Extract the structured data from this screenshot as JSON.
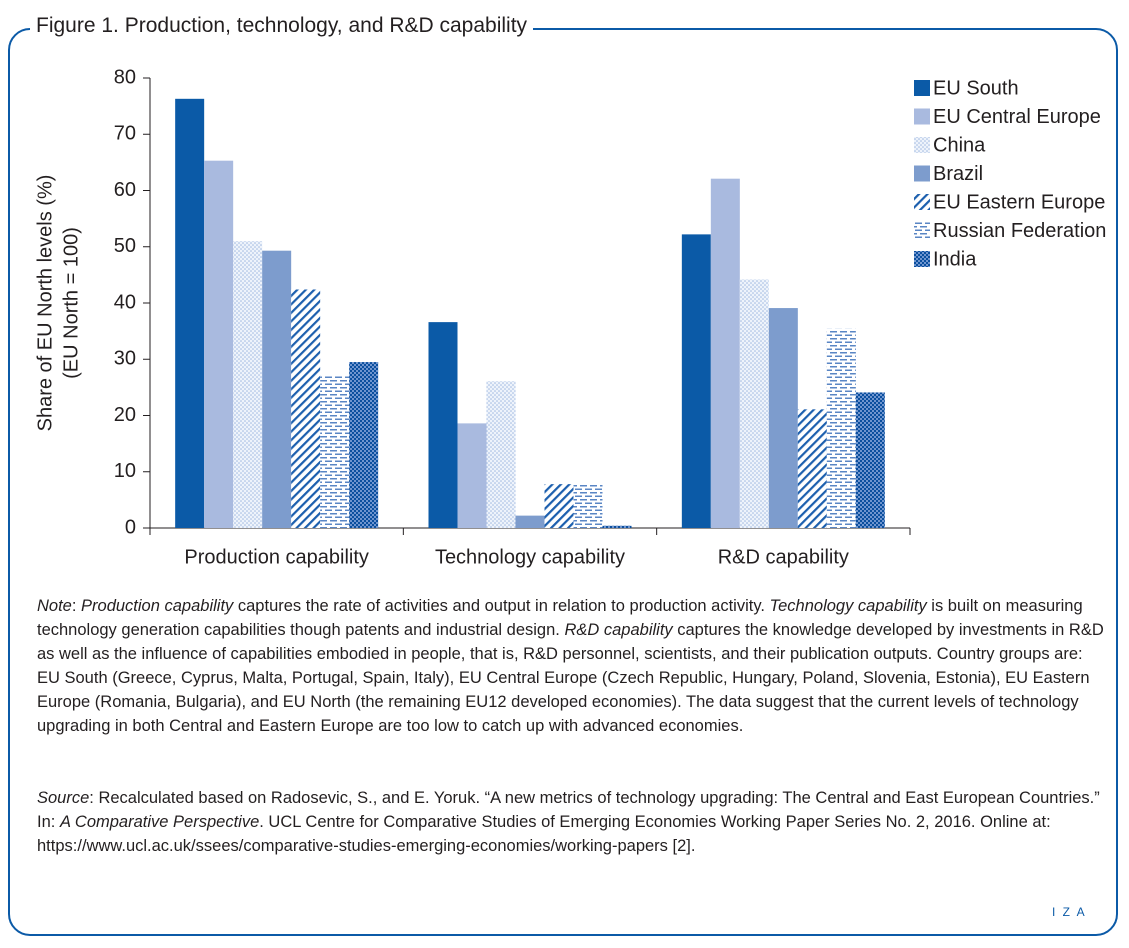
{
  "chart_data": {
    "type": "bar",
    "title": "Figure 1. Production, technology, and R&D capability",
    "y_label": [
      "Share of EU North levels (%)",
      "(EU North = 100)"
    ],
    "categories": [
      "Production capability",
      "Technology capability",
      "R&D capability"
    ],
    "series": [
      {
        "name": "EU South",
        "color": "#0b5aa7",
        "pattern": "solid",
        "values": [
          76.3,
          36.6,
          52.2
        ]
      },
      {
        "name": "EU Central Europe",
        "color": "#a9badf",
        "pattern": "solid",
        "values": [
          65.3,
          18.6,
          62.1
        ]
      },
      {
        "name": "China",
        "color": "#9fb9e0",
        "pattern": "dots",
        "values": [
          51.0,
          26.1,
          44.2
        ]
      },
      {
        "name": "Brazil",
        "color": "#7d9ccd",
        "pattern": "solid",
        "values": [
          49.3,
          2.2,
          39.1
        ]
      },
      {
        "name": "EU Eastern Europe",
        "color": "#1c5fae",
        "pattern": "diagonal",
        "values": [
          42.4,
          7.8,
          21.1
        ]
      },
      {
        "name": "Russian Federation",
        "color": "#5a86c4",
        "pattern": "dashes",
        "values": [
          27.0,
          7.8,
          35.4
        ]
      },
      {
        "name": "India",
        "color": "#0b4f9e",
        "pattern": "checker",
        "values": [
          29.5,
          0.4,
          24.1
        ]
      }
    ],
    "ylim": [
      0,
      80
    ],
    "yticks": [
      0,
      10,
      20,
      30,
      40,
      50,
      60,
      70,
      80
    ],
    "legend": "right",
    "grid": false
  },
  "note": [
    "Note",
    ": ",
    "Production capability",
    " captures the rate of activities and output in relation to production activity. ",
    "Technology capability",
    " is built on measuring technology generation capabilities though patents and industrial design. ",
    "R&D capability",
    " captures the knowledge developed by investments in R&D as well as the influence of capabilities embodied in people, that is, R&D personnel, scientists, and their publication outputs. Country groups are: EU South (Greece, Cyprus, Malta, Portugal, Spain, Italy), EU Central Europe (Czech Republic, Hungary, Poland, Slovenia, Estonia), EU Eastern Europe (Romania, Bulgaria), and EU North (the remaining EU12 developed economies). The data suggest that the current levels of technology upgrading in both Central and Eastern Europe are too low to catch up with advanced economies."
  ],
  "source": [
    "Source",
    ": Recalculated based on Radosevic, S., and E. Yoruk. “A new metrics of technology upgrading: The Central and East European Countries.” In: ",
    "A Comparative Perspective",
    ". UCL Centre for Comparative Studies of Emerging Economies Working Paper Series No. 2, 2016. Online at: https://www.ucl.ac.uk/ssees/comparative-studies-emerging-economies/working-papers [2]."
  ],
  "footer": "I Z A"
}
